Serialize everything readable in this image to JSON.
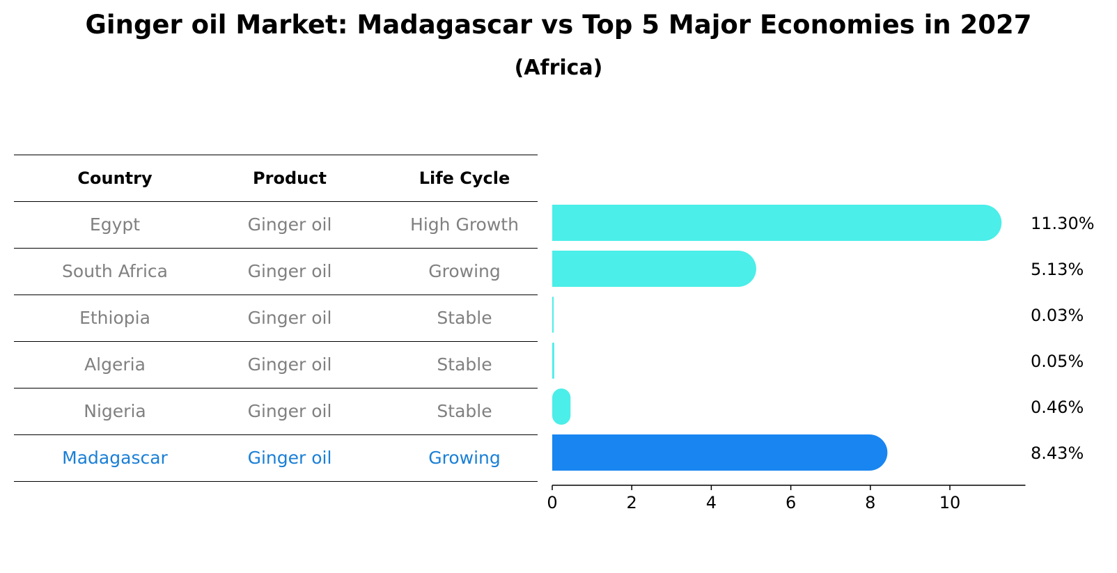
{
  "title": "Ginger oil Market: Madagascar vs Top 5 Major Economies in 2027",
  "subtitle": "(Africa)",
  "table": {
    "headers": [
      "Country",
      "Product",
      "Life Cycle"
    ],
    "rows": [
      [
        "Egypt",
        "Ginger oil",
        "High Growth"
      ],
      [
        "South Africa",
        "Ginger oil",
        "Growing"
      ],
      [
        "Ethiopia",
        "Ginger oil",
        "Stable"
      ],
      [
        "Algeria",
        "Ginger oil",
        "Stable"
      ],
      [
        "Nigeria",
        "Ginger oil",
        "Stable"
      ],
      [
        "Madagascar",
        "Ginger oil",
        "Growing"
      ]
    ]
  },
  "chart_data": {
    "type": "bar",
    "orientation": "horizontal",
    "categories": [
      "Egypt",
      "South Africa",
      "Ethiopia",
      "Algeria",
      "Nigeria",
      "Madagascar"
    ],
    "values": [
      11.3,
      5.13,
      0.03,
      0.05,
      0.46,
      8.43
    ],
    "value_labels": [
      "11.30%",
      "5.13%",
      "0.03%",
      "0.05%",
      "0.46%",
      "8.43%"
    ],
    "xticks": [
      0,
      2,
      4,
      6,
      8,
      10
    ],
    "xlim": [
      0,
      11.9
    ],
    "highlight": "Madagascar",
    "colors": {
      "default": "#4beee8",
      "highlight": "#1985f0"
    }
  }
}
